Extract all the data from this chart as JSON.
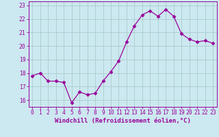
{
  "x": [
    0,
    1,
    2,
    3,
    4,
    5,
    6,
    7,
    8,
    9,
    10,
    11,
    12,
    13,
    14,
    15,
    16,
    17,
    18,
    19,
    20,
    21,
    22,
    23
  ],
  "y": [
    17.8,
    18.0,
    17.4,
    17.4,
    17.3,
    15.8,
    16.6,
    16.4,
    16.5,
    17.4,
    18.1,
    18.9,
    20.3,
    21.5,
    22.3,
    22.6,
    22.2,
    22.7,
    22.2,
    20.9,
    20.5,
    20.3,
    20.4,
    20.2
  ],
  "line_color": "#990099",
  "marker": "D",
  "marker_size": 2.5,
  "bg_color": "#cce8f0",
  "grid_color": "#aacccc",
  "xlabel": "Windchill (Refroidissement éolien,°C)",
  "ylabel_ticks": [
    16,
    17,
    18,
    19,
    20,
    21,
    22,
    23
  ],
  "xlim": [
    -0.5,
    23.5
  ],
  "ylim": [
    15.5,
    23.3
  ],
  "axis_color": "#990099",
  "label_fontsize": 6.5,
  "tick_fontsize": 5.8
}
